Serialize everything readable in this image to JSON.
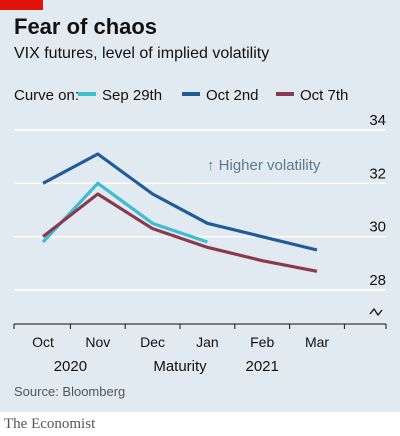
{
  "header": {
    "title": "Fear of chaos",
    "subtitle": "VIX futures, level of implied volatility"
  },
  "legend": {
    "title": "Curve on:"
  },
  "source": "Source: Bloomberg",
  "footer": "The Economist",
  "colors": {
    "accent": "#e3120b",
    "background": "#e1eaf0",
    "sep29": "#3ebcd2",
    "oct2": "#1f5c99",
    "oct7": "#8b3a4e"
  },
  "chart_data": {
    "type": "line",
    "title": "Fear of chaos",
    "subtitle": "VIX futures, level of implied volatility",
    "xlabel": "Maturity",
    "ylabel": "",
    "categories": [
      "Oct",
      "Nov",
      "Dec",
      "Jan",
      "Feb",
      "Mar"
    ],
    "year_labels": [
      {
        "label": "2020",
        "after": "Oct",
        "before": "Nov"
      },
      {
        "label": "2021",
        "after": "Jan",
        "before": "Mar"
      }
    ],
    "ylim": [
      28,
      34
    ],
    "yticks": [
      28,
      30,
      32,
      34
    ],
    "y_axis_break": true,
    "y_axis_side": "right",
    "grid": true,
    "annotation": "↑ Higher volatility",
    "legend_position": "top",
    "series": [
      {
        "name": "Sep 29th",
        "color": "#3ebcd2",
        "values": [
          29.8,
          32.0,
          30.5,
          29.8,
          null,
          null
        ]
      },
      {
        "name": "Oct 2nd",
        "color": "#1f5c99",
        "values": [
          32.0,
          33.1,
          31.6,
          30.5,
          30.0,
          29.5
        ]
      },
      {
        "name": "Oct 7th",
        "color": "#8b3a4e",
        "values": [
          30.0,
          31.6,
          30.3,
          29.6,
          29.1,
          28.7
        ]
      }
    ]
  }
}
